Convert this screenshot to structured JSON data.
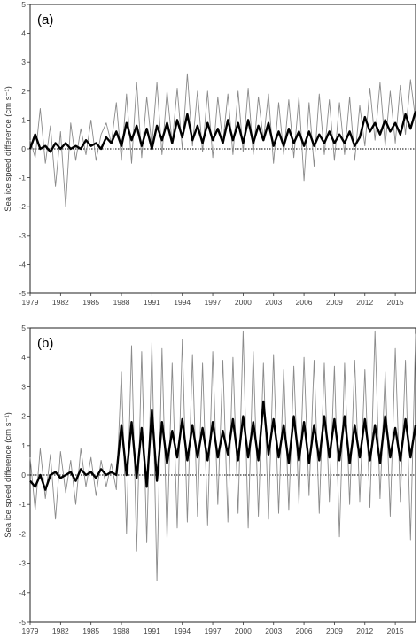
{
  "chart_data": [
    {
      "type": "line",
      "panel_label": "(a)",
      "ylabel": "Sea ice speed difference (cm s⁻¹)",
      "ylim": [
        -5,
        5
      ],
      "yticks": [
        -5,
        -4,
        -3,
        -2,
        -1,
        0,
        1,
        2,
        3,
        4,
        5
      ],
      "xlim": [
        1979,
        2017
      ],
      "xticks": [
        "1979",
        "1982",
        "1985",
        "1988",
        "1991",
        "1994",
        "1997",
        "2000",
        "2003",
        "2006",
        "2009",
        "2012",
        "2015"
      ],
      "zero_line": "dotted",
      "series": [
        {
          "style": "thin grey monthly",
          "x": [
            1979.0,
            1979.5,
            1980.0,
            1980.5,
            1981.0,
            1981.5,
            1982.0,
            1982.5,
            1983.0,
            1983.5,
            1984.0,
            1984.5,
            1985.0,
            1985.5,
            1986.0,
            1986.5,
            1987.0,
            1987.5,
            1988.0,
            1988.5,
            1989.0,
            1989.5,
            1990.0,
            1990.5,
            1991.0,
            1991.5,
            1992.0,
            1992.5,
            1993.0,
            1993.5,
            1994.0,
            1994.5,
            1995.0,
            1995.5,
            1996.0,
            1996.5,
            1997.0,
            1997.5,
            1998.0,
            1998.5,
            1999.0,
            1999.5,
            2000.0,
            2000.5,
            2001.0,
            2001.5,
            2002.0,
            2002.5,
            2003.0,
            2003.5,
            2004.0,
            2004.5,
            2005.0,
            2005.5,
            2006.0,
            2006.5,
            2007.0,
            2007.5,
            2008.0,
            2008.5,
            2009.0,
            2009.5,
            2010.0,
            2010.5,
            2011.0,
            2011.5,
            2012.0,
            2012.5,
            2013.0,
            2013.5,
            2014.0,
            2014.5,
            2015.0,
            2015.5,
            2016.0,
            2016.5,
            2017.0
          ],
          "values": [
            0.3,
            -0.3,
            1.4,
            -0.5,
            0.8,
            -1.3,
            0.6,
            -2.0,
            0.9,
            -0.4,
            0.7,
            -0.2,
            1.0,
            -0.4,
            0.5,
            0.9,
            0.2,
            1.6,
            -0.4,
            1.9,
            -0.5,
            2.3,
            -0.3,
            1.8,
            0.1,
            2.3,
            -0.2,
            2.0,
            0.2,
            2.1,
            0.0,
            2.6,
            0.1,
            2.0,
            -0.1,
            2.0,
            -0.3,
            1.8,
            0.2,
            1.9,
            -0.2,
            2.0,
            -0.1,
            2.1,
            -0.2,
            1.8,
            0.3,
            1.9,
            -0.5,
            1.6,
            -0.2,
            1.7,
            -0.3,
            1.8,
            -1.1,
            1.6,
            -0.6,
            1.9,
            -0.2,
            1.7,
            -0.4,
            1.6,
            -0.2,
            1.8,
            -0.4,
            1.5,
            0.1,
            2.1,
            0.3,
            2.3,
            0.1,
            2.0,
            0.2,
            2.2,
            0.5,
            2.4,
            1.0
          ]
        },
        {
          "style": "thick black smoothed",
          "x": [
            1979.0,
            1979.5,
            1980.0,
            1980.5,
            1981.0,
            1981.5,
            1982.0,
            1982.5,
            1983.0,
            1983.5,
            1984.0,
            1984.5,
            1985.0,
            1985.5,
            1986.0,
            1986.5,
            1987.0,
            1987.5,
            1988.0,
            1988.5,
            1989.0,
            1989.5,
            1990.0,
            1990.5,
            1991.0,
            1991.5,
            1992.0,
            1992.5,
            1993.0,
            1993.5,
            1994.0,
            1994.5,
            1995.0,
            1995.5,
            1996.0,
            1996.5,
            1997.0,
            1997.5,
            1998.0,
            1998.5,
            1999.0,
            1999.5,
            2000.0,
            2000.5,
            2001.0,
            2001.5,
            2002.0,
            2002.5,
            2003.0,
            2003.5,
            2004.0,
            2004.5,
            2005.0,
            2005.5,
            2006.0,
            2006.5,
            2007.0,
            2007.5,
            2008.0,
            2008.5,
            2009.0,
            2009.5,
            2010.0,
            2010.5,
            2011.0,
            2011.5,
            2012.0,
            2012.5,
            2013.0,
            2013.5,
            2014.0,
            2014.5,
            2015.0,
            2015.5,
            2016.0,
            2016.5,
            2017.0
          ],
          "values": [
            0.0,
            0.5,
            0.0,
            0.1,
            -0.1,
            0.2,
            0.0,
            0.2,
            0.0,
            0.1,
            0.0,
            0.3,
            0.1,
            0.2,
            0.0,
            0.4,
            0.2,
            0.6,
            0.1,
            0.9,
            0.3,
            0.8,
            0.1,
            0.7,
            0.0,
            0.8,
            0.3,
            0.9,
            0.2,
            1.0,
            0.4,
            1.2,
            0.3,
            0.8,
            0.2,
            0.9,
            0.3,
            0.7,
            0.2,
            1.0,
            0.3,
            0.9,
            0.2,
            1.0,
            0.2,
            0.8,
            0.3,
            0.9,
            0.1,
            0.6,
            0.1,
            0.7,
            0.2,
            0.6,
            0.1,
            0.6,
            0.1,
            0.5,
            0.2,
            0.6,
            0.2,
            0.5,
            0.2,
            0.6,
            0.1,
            0.4,
            1.1,
            0.6,
            0.9,
            0.5,
            1.0,
            0.6,
            0.9,
            0.5,
            1.2,
            0.7,
            1.3
          ]
        }
      ]
    },
    {
      "type": "line",
      "panel_label": "(b)",
      "ylabel": "Sea ice speed difference (cm s⁻¹)",
      "ylim": [
        -5,
        5
      ],
      "yticks": [
        -5,
        -4,
        -3,
        -2,
        -1,
        0,
        1,
        2,
        3,
        4,
        5
      ],
      "xlim": [
        1979,
        2017
      ],
      "xticks": [
        "1979",
        "1982",
        "1985",
        "1988",
        "1991",
        "1994",
        "1997",
        "2000",
        "2003",
        "2006",
        "2009",
        "2012",
        "2015"
      ],
      "zero_line": "dotted",
      "series": [
        {
          "style": "thin grey monthly",
          "x": [
            1979.0,
            1979.5,
            1980.0,
            1980.5,
            1981.0,
            1981.5,
            1982.0,
            1982.5,
            1983.0,
            1983.5,
            1984.0,
            1984.5,
            1985.0,
            1985.5,
            1986.0,
            1986.5,
            1987.0,
            1987.5,
            1988.0,
            1988.5,
            1989.0,
            1989.5,
            1990.0,
            1990.5,
            1991.0,
            1991.5,
            1992.0,
            1992.5,
            1993.0,
            1993.5,
            1994.0,
            1994.5,
            1995.0,
            1995.5,
            1996.0,
            1996.5,
            1997.0,
            1997.5,
            1998.0,
            1998.5,
            1999.0,
            1999.5,
            2000.0,
            2000.5,
            2001.0,
            2001.5,
            2002.0,
            2002.5,
            2003.0,
            2003.5,
            2004.0,
            2004.5,
            2005.0,
            2005.5,
            2006.0,
            2006.5,
            2007.0,
            2007.5,
            2008.0,
            2008.5,
            2009.0,
            2009.5,
            2010.0,
            2010.5,
            2011.0,
            2011.5,
            2012.0,
            2012.5,
            2013.0,
            2013.5,
            2014.0,
            2014.5,
            2015.0,
            2015.5,
            2016.0,
            2016.5,
            2017.0
          ],
          "values": [
            0.6,
            -1.2,
            0.9,
            -0.8,
            0.7,
            -1.5,
            0.8,
            -0.6,
            0.5,
            -1.0,
            0.9,
            -0.4,
            0.6,
            -0.7,
            0.5,
            -0.4,
            0.4,
            -0.5,
            3.5,
            -2.0,
            4.4,
            -2.6,
            4.2,
            -2.3,
            4.5,
            -3.6,
            4.3,
            -2.2,
            3.8,
            -1.8,
            4.6,
            -1.6,
            4.1,
            -1.4,
            3.8,
            -1.7,
            4.2,
            -1.0,
            3.9,
            -1.6,
            4.0,
            -1.3,
            4.9,
            -1.8,
            4.2,
            -1.4,
            3.8,
            -1.5,
            4.1,
            -1.3,
            3.6,
            -1.2,
            3.7,
            -1.0,
            4.0,
            -0.7,
            3.9,
            -1.3,
            3.8,
            -0.9,
            3.7,
            -2.1,
            3.8,
            -1.0,
            3.9,
            -0.9,
            3.6,
            -1.1,
            4.9,
            -0.8,
            3.5,
            -1.4,
            4.3,
            -0.9,
            3.9,
            -2.2,
            4.8
          ]
        },
        {
          "style": "thick black smoothed",
          "x": [
            1979.0,
            1979.5,
            1980.0,
            1980.5,
            1981.0,
            1981.5,
            1982.0,
            1982.5,
            1983.0,
            1983.5,
            1984.0,
            1984.5,
            1985.0,
            1985.5,
            1986.0,
            1986.5,
            1987.0,
            1987.5,
            1988.0,
            1988.5,
            1989.0,
            1989.5,
            1990.0,
            1990.5,
            1991.0,
            1991.5,
            1992.0,
            1992.5,
            1993.0,
            1993.5,
            1994.0,
            1994.5,
            1995.0,
            1995.5,
            1996.0,
            1996.5,
            1997.0,
            1997.5,
            1998.0,
            1998.5,
            1999.0,
            1999.5,
            2000.0,
            2000.5,
            2001.0,
            2001.5,
            2002.0,
            2002.5,
            2003.0,
            2003.5,
            2004.0,
            2004.5,
            2005.0,
            2005.5,
            2006.0,
            2006.5,
            2007.0,
            2007.5,
            2008.0,
            2008.5,
            2009.0,
            2009.5,
            2010.0,
            2010.5,
            2011.0,
            2011.5,
            2012.0,
            2012.5,
            2013.0,
            2013.5,
            2014.0,
            2014.5,
            2015.0,
            2015.5,
            2016.0,
            2016.5,
            2017.0
          ],
          "values": [
            -0.2,
            -0.4,
            0.0,
            -0.5,
            0.0,
            0.1,
            -0.1,
            0.0,
            0.1,
            -0.2,
            0.2,
            0.0,
            0.1,
            -0.1,
            0.2,
            0.0,
            0.1,
            0.0,
            1.7,
            0.0,
            1.8,
            -0.1,
            1.6,
            -0.4,
            2.2,
            -0.2,
            1.8,
            0.4,
            1.5,
            0.6,
            1.9,
            0.5,
            1.7,
            0.6,
            1.6,
            0.5,
            1.8,
            0.6,
            1.5,
            0.7,
            1.9,
            0.5,
            2.0,
            0.6,
            1.8,
            0.5,
            2.5,
            0.7,
            1.9,
            0.6,
            1.7,
            0.4,
            2.0,
            0.5,
            1.8,
            0.4,
            1.7,
            0.5,
            2.0,
            0.6,
            1.9,
            0.5,
            2.0,
            0.4,
            1.7,
            0.6,
            1.9,
            0.5,
            1.7,
            0.4,
            2.0,
            0.6,
            1.6,
            0.5,
            1.9,
            0.6,
            1.7
          ]
        }
      ]
    }
  ]
}
